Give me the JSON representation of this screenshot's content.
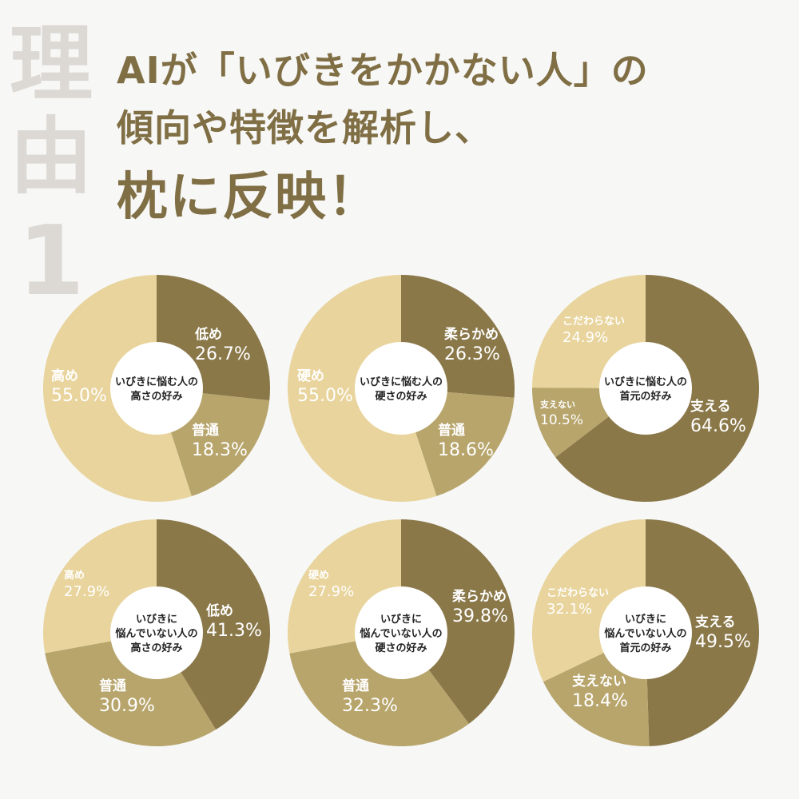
{
  "side_label": {
    "line1": "理",
    "line2": "由",
    "line3": "1"
  },
  "headline": {
    "line1": "AIが「いびきをかかない人」の",
    "line2": "傾向や特徴を解析し、",
    "line3": "枕に反映！"
  },
  "colors": {
    "dark": "#8a7849",
    "medium": "#b7a56c",
    "light": "#e8d49c",
    "label_light": "#ffffff",
    "center_text": "#222222"
  },
  "chart_data": [
    {
      "type": "pie",
      "title": "いびきに悩む人の高さの好み",
      "title_lines": [
        "いびきに悩む人の",
        "高さの好み"
      ],
      "slices": [
        {
          "label": "低め",
          "value": 26.7,
          "display": "26.7%",
          "color": "dark"
        },
        {
          "label": "普通",
          "value": 18.3,
          "display": "18.3%",
          "color": "medium"
        },
        {
          "label": "高め",
          "value": 55.0,
          "display": "55.0%",
          "color": "light"
        }
      ]
    },
    {
      "type": "pie",
      "title": "いびきに悩む人の硬さの好み",
      "title_lines": [
        "いびきに悩む人の",
        "硬さの好み"
      ],
      "slices": [
        {
          "label": "柔らかめ",
          "value": 26.3,
          "display": "26.3%",
          "color": "dark"
        },
        {
          "label": "普通",
          "value": 18.6,
          "display": "18.6%",
          "color": "medium"
        },
        {
          "label": "硬め",
          "value": 55.0,
          "display": "55.0%",
          "color": "light"
        }
      ]
    },
    {
      "type": "pie",
      "title": "いびきに悩む人の首元の好み",
      "title_lines": [
        "いびきに悩む人の",
        "首元の好み"
      ],
      "slices": [
        {
          "label": "支える",
          "value": 64.6,
          "display": "64.6%",
          "color": "dark"
        },
        {
          "label": "支えない",
          "value": 10.5,
          "display": "10.5%",
          "color": "medium"
        },
        {
          "label": "こだわらない",
          "value": 24.9,
          "display": "24.9%",
          "color": "light"
        }
      ]
    },
    {
      "type": "pie",
      "title": "いびきに悩んでいない人の高さの好み",
      "title_lines": [
        "いびきに",
        "悩んでいない人の",
        "高さの好み"
      ],
      "slices": [
        {
          "label": "低め",
          "value": 41.3,
          "display": "41.3%",
          "color": "dark"
        },
        {
          "label": "普通",
          "value": 30.9,
          "display": "30.9%",
          "color": "medium"
        },
        {
          "label": "高め",
          "value": 27.9,
          "display": "27.9%",
          "color": "light"
        }
      ]
    },
    {
      "type": "pie",
      "title": "いびきに悩んでいない人の硬さの好み",
      "title_lines": [
        "いびきに",
        "悩んでいない人の",
        "硬さの好み"
      ],
      "slices": [
        {
          "label": "柔らかめ",
          "value": 39.8,
          "display": "39.8%",
          "color": "dark"
        },
        {
          "label": "普通",
          "value": 32.3,
          "display": "32.3%",
          "color": "medium"
        },
        {
          "label": "硬め",
          "value": 27.9,
          "display": "27.9%",
          "color": "light"
        }
      ]
    },
    {
      "type": "pie",
      "title": "いびきに悩んでいない人の首元の好み",
      "title_lines": [
        "いびきに",
        "悩んでいない人の",
        "首元の好み"
      ],
      "slices": [
        {
          "label": "支える",
          "value": 49.5,
          "display": "49.5%",
          "color": "dark"
        },
        {
          "label": "支えない",
          "value": 18.4,
          "display": "18.4%",
          "color": "medium"
        },
        {
          "label": "こだわらない",
          "value": 32.1,
          "display": "32.1%",
          "color": "light"
        }
      ]
    }
  ]
}
